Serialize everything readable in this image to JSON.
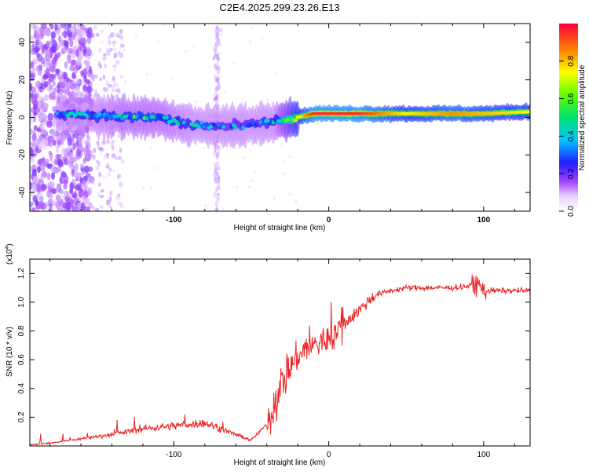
{
  "title": "C2E4.2025.299.23.26.E13",
  "spectrogram": {
    "xlabel": "Height of straight line (km)",
    "ylabel": "Frequency (Hz)",
    "xlim": [
      -193,
      130
    ],
    "ylim": [
      -50,
      50
    ],
    "xticks": [
      -100,
      0,
      100
    ],
    "yticks": [
      -40,
      -20,
      0,
      20,
      40
    ],
    "colorbar_label": "Normalized spectral amplitude",
    "colorbar_ticks": [
      0.0,
      0.2,
      0.4,
      0.6,
      0.8
    ],
    "colorbar_range": [
      0,
      1
    ]
  },
  "chart_data": [
    {
      "type": "heatmap",
      "title": "C2E4.2025.299.23.26.E13",
      "xlabel": "Height of straight line (km)",
      "ylabel": "Frequency (Hz)",
      "xlim": [
        -193,
        130
      ],
      "ylim": [
        -50,
        50
      ],
      "colorbar": "Normalized spectral amplitude",
      "ridge": {
        "description": "frequency ridge traced by the spectral peak",
        "x": [
          -170,
          -150,
          -130,
          -110,
          -90,
          -70,
          -50,
          -35,
          -25,
          -10,
          0,
          20,
          50,
          80,
          100,
          130
        ],
        "frequency_hz": [
          2,
          1,
          0,
          0,
          -4,
          -5,
          -4,
          -2,
          -1,
          2,
          2,
          2,
          2,
          2,
          2,
          3
        ],
        "amplitude": [
          0.35,
          0.35,
          0.4,
          0.4,
          0.35,
          0.3,
          0.3,
          0.35,
          0.6,
          0.95,
          0.95,
          0.95,
          0.75,
          0.85,
          0.8,
          0.75
        ]
      }
    },
    {
      "type": "line",
      "xlabel": "Height of straight line (km)",
      "ylabel": "SNR (10 * v/v)",
      "yscale_label": "(x10",
      "yscale_exp": "4",
      "xlim": [
        -193,
        130
      ],
      "ylim": [
        0,
        1.3
      ],
      "xticks": [
        -100,
        0,
        100
      ],
      "yticks": [
        0.2,
        0.4,
        0.6,
        0.8,
        1.0,
        1.2
      ],
      "color": "#ee2222",
      "series": [
        {
          "name": "SNR",
          "x": [
            -193,
            -180,
            -160,
            -140,
            -120,
            -100,
            -80,
            -60,
            -50,
            -40,
            -35,
            -30,
            -25,
            -20,
            -15,
            -10,
            -5,
            0,
            5,
            10,
            20,
            30,
            40,
            50,
            60,
            80,
            97,
            100,
            120,
            130
          ],
          "values": [
            0.01,
            0.02,
            0.05,
            0.08,
            0.12,
            0.14,
            0.16,
            0.08,
            0.04,
            0.15,
            0.3,
            0.45,
            0.55,
            0.62,
            0.68,
            0.7,
            0.72,
            0.75,
            0.8,
            0.85,
            0.95,
            1.05,
            1.08,
            1.1,
            1.1,
            1.1,
            1.12,
            1.08,
            1.08,
            1.08
          ]
        }
      ]
    }
  ],
  "snr": {
    "xlabel": "Height of straight line (km)",
    "ylabel": "SNR (10 * v/v)",
    "scale_prefix": "(x10",
    "scale_exp": "4",
    "scale_suffix": ")"
  }
}
